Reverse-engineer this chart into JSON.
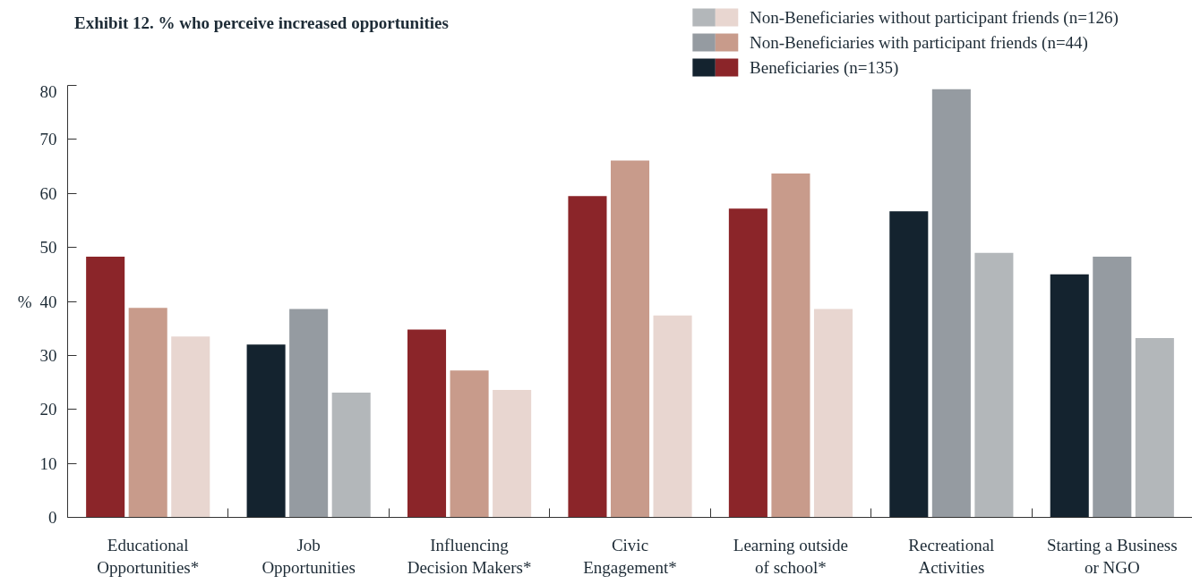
{
  "chart_data": {
    "type": "bar",
    "title": "Exhibit 12. % who perceive increased opportunities",
    "ylabel": "%",
    "categories": [
      "Educational\nOpportunities*",
      "Job\nOpportunities",
      "Influencing\nDecision Makers*",
      "Civic\nEngagement*",
      "Learning outside\nof school*",
      "Recreational\nActivities",
      "Starting a Business\nor NGO"
    ],
    "series": [
      {
        "name": "Beneficiaries (n=135)",
        "colors": [
          "#8b2529",
          "#14232f",
          "#8b2529",
          "#8b2529",
          "#8b2529",
          "#14232f",
          "#14232f"
        ],
        "values": [
          48.3,
          32.0,
          34.8,
          59.5,
          57.2,
          56.7,
          45.0
        ]
      },
      {
        "name": "Non-Beneficiaries with participant friends (n=44)",
        "colors": [
          "#c89b8b",
          "#959ba1",
          "#c89b8b",
          "#c89b8b",
          "#c89b8b",
          "#959ba1",
          "#959ba1"
        ],
        "values": [
          38.8,
          38.6,
          27.2,
          66.1,
          63.7,
          79.3,
          48.3
        ]
      },
      {
        "name": "Non-Beneficiaries without participant friends (n=126)",
        "colors": [
          "#e8d6d0",
          "#b3b7ba",
          "#e8d6d0",
          "#e8d6d0",
          "#e8d6d0",
          "#b3b7ba",
          "#b3b7ba"
        ],
        "values": [
          33.5,
          23.1,
          23.6,
          37.4,
          38.6,
          49.0,
          33.2
        ]
      }
    ],
    "ylim": [
      0,
      80
    ],
    "yticks": [
      0,
      10,
      20,
      30,
      40,
      50,
      60,
      70,
      80
    ],
    "grid": false,
    "legend": "top right"
  }
}
